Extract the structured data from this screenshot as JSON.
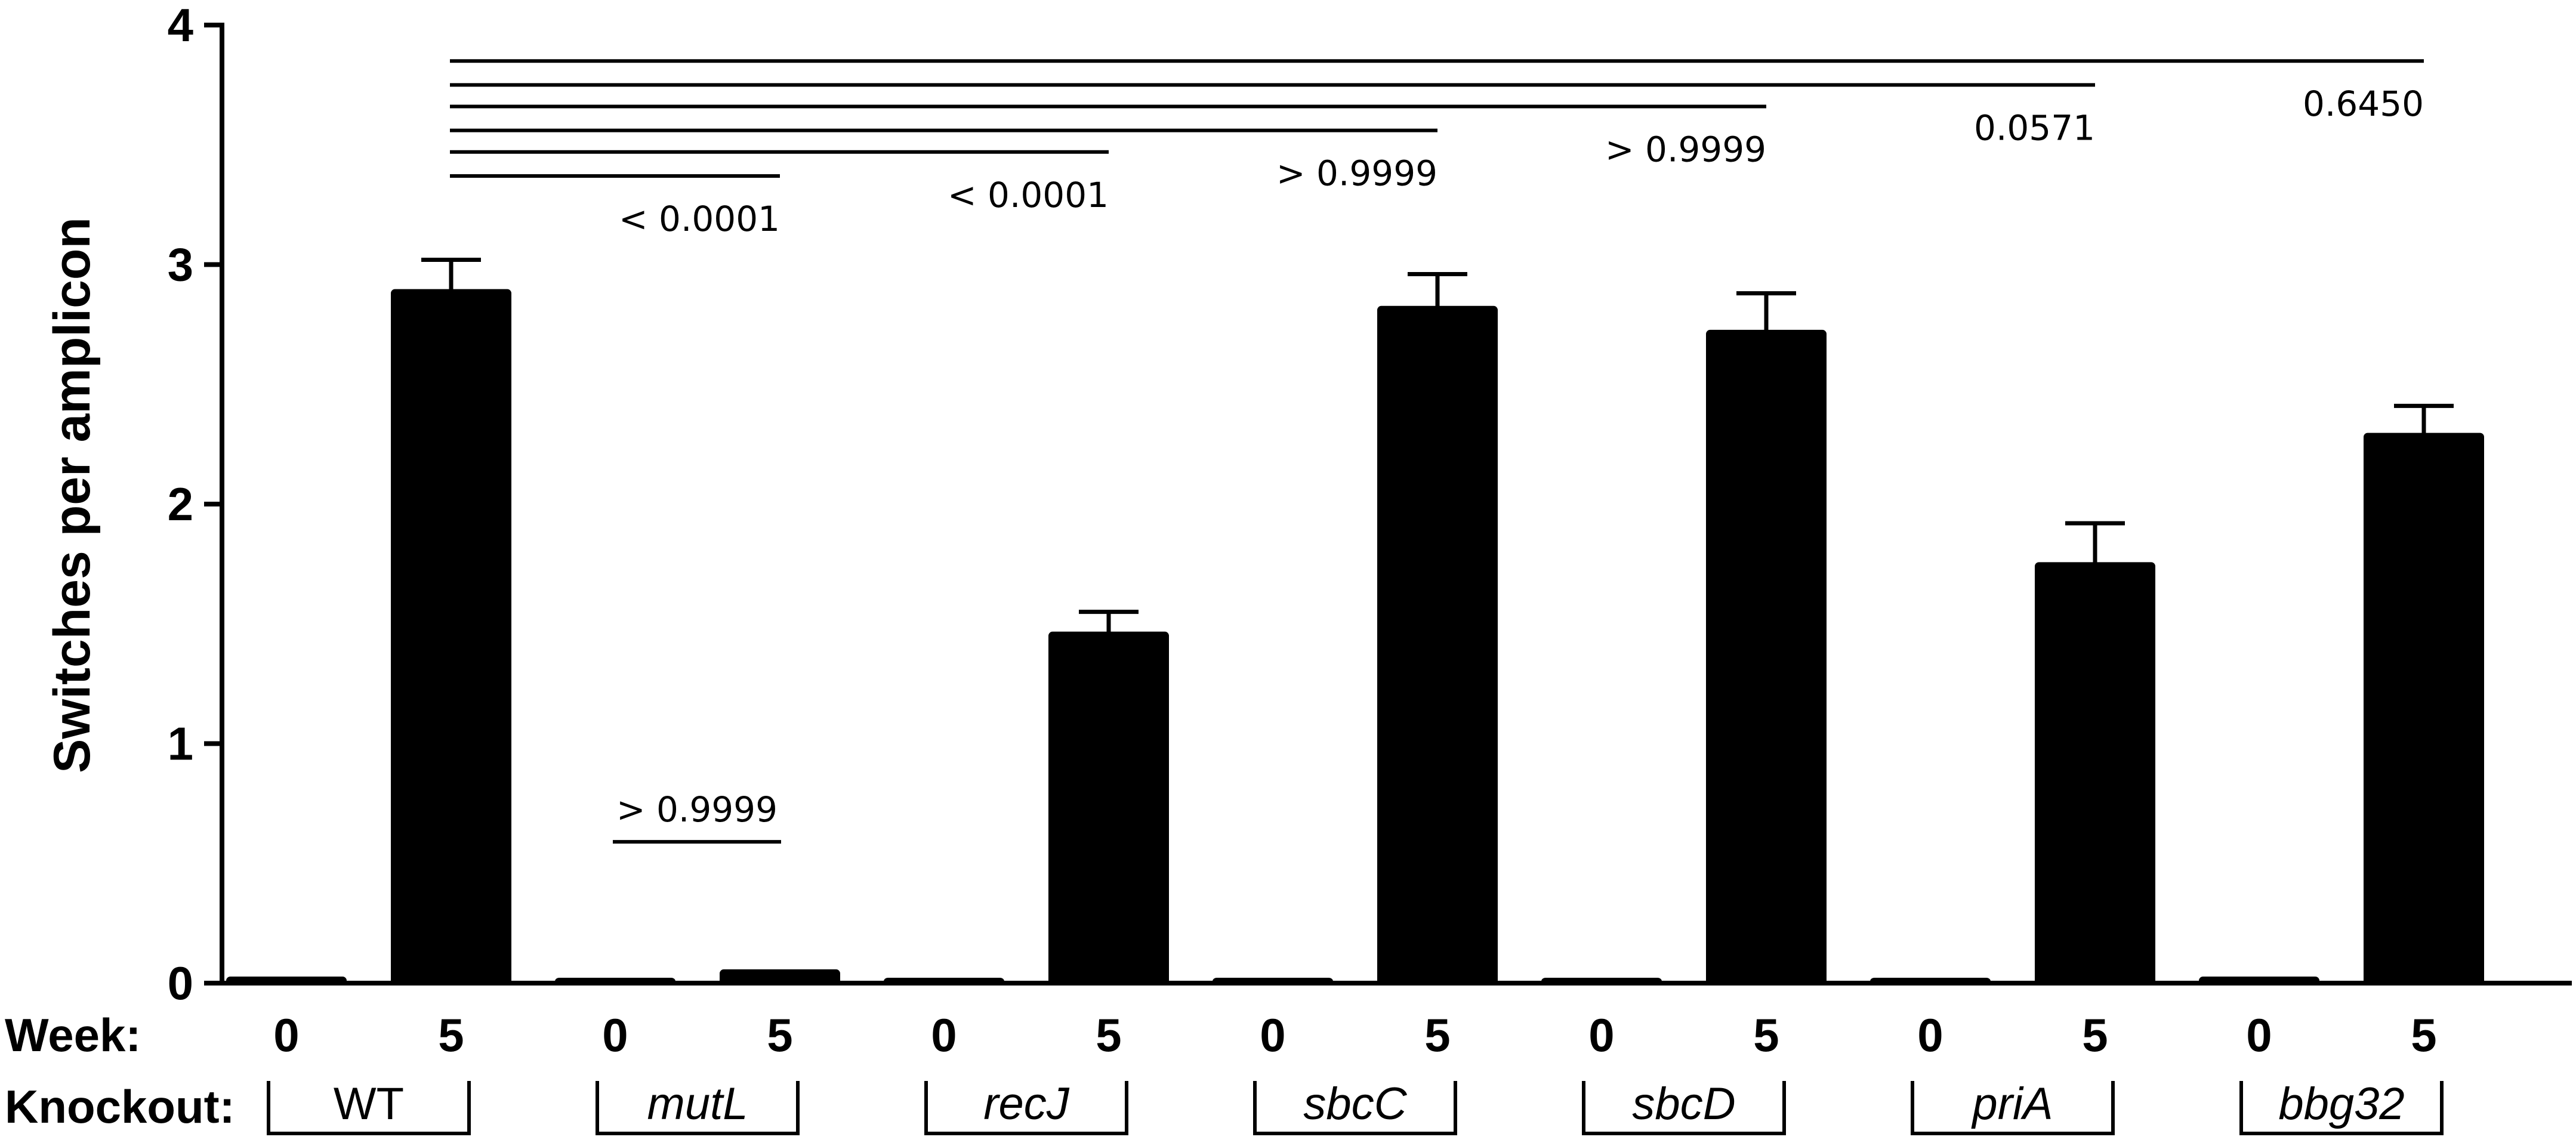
{
  "chart_data": {
    "type": "bar",
    "title": "",
    "xlabel": "",
    "ylabel": "Switches per amplicon",
    "ylim": [
      0,
      4
    ],
    "yticks": [
      "0",
      "1",
      "2",
      "3",
      "4"
    ],
    "grid": false,
    "row_labels": {
      "week": "Week:",
      "knockout": "Knockout:"
    },
    "groups": [
      {
        "name": "WT",
        "italic": false,
        "weeks": [
          "0",
          "5"
        ],
        "values": [
          0.02,
          2.89
        ],
        "errors": [
          0,
          0.13
        ]
      },
      {
        "name": "mutL",
        "italic": true,
        "weeks": [
          "0",
          "5"
        ],
        "values": [
          0.0,
          0.05
        ],
        "errors": [
          0,
          0
        ]
      },
      {
        "name": "recJ",
        "italic": true,
        "weeks": [
          "0",
          "5"
        ],
        "values": [
          0.01,
          1.46
        ],
        "errors": [
          0,
          0.09
        ]
      },
      {
        "name": "sbcC",
        "italic": true,
        "weeks": [
          "0",
          "5"
        ],
        "values": [
          0.01,
          2.82
        ],
        "errors": [
          0,
          0.14
        ]
      },
      {
        "name": "sbcD",
        "italic": true,
        "weeks": [
          "0",
          "5"
        ],
        "values": [
          0.01,
          2.72
        ],
        "errors": [
          0,
          0.16
        ]
      },
      {
        "name": "priA",
        "italic": true,
        "weeks": [
          "0",
          "5"
        ],
        "values": [
          0.0,
          1.75
        ],
        "errors": [
          0,
          0.17
        ]
      },
      {
        "name": "bbg32",
        "italic": true,
        "weeks": [
          "0",
          "5"
        ],
        "values": [
          0.02,
          2.29
        ],
        "errors": [
          0,
          0.12
        ]
      }
    ],
    "comparisons": [
      {
        "from_group": 0,
        "to_group": 1,
        "y": 3.37,
        "p": "< 0.0001"
      },
      {
        "from_group": 0,
        "to_group": 2,
        "y": 3.47,
        "p": "< 0.0001"
      },
      {
        "from_group": 0,
        "to_group": 3,
        "y": 3.56,
        "p": "> 0.9999"
      },
      {
        "from_group": 0,
        "to_group": 4,
        "y": 3.66,
        "p": "> 0.9999"
      },
      {
        "from_group": 0,
        "to_group": 5,
        "y": 3.75,
        "p": "0.0571"
      },
      {
        "from_group": 0,
        "to_group": 6,
        "y": 3.85,
        "p": "0.6450"
      }
    ],
    "within_comparisons": [
      {
        "group": 1,
        "y": 0.59,
        "p": "> 0.9999"
      }
    ]
  }
}
